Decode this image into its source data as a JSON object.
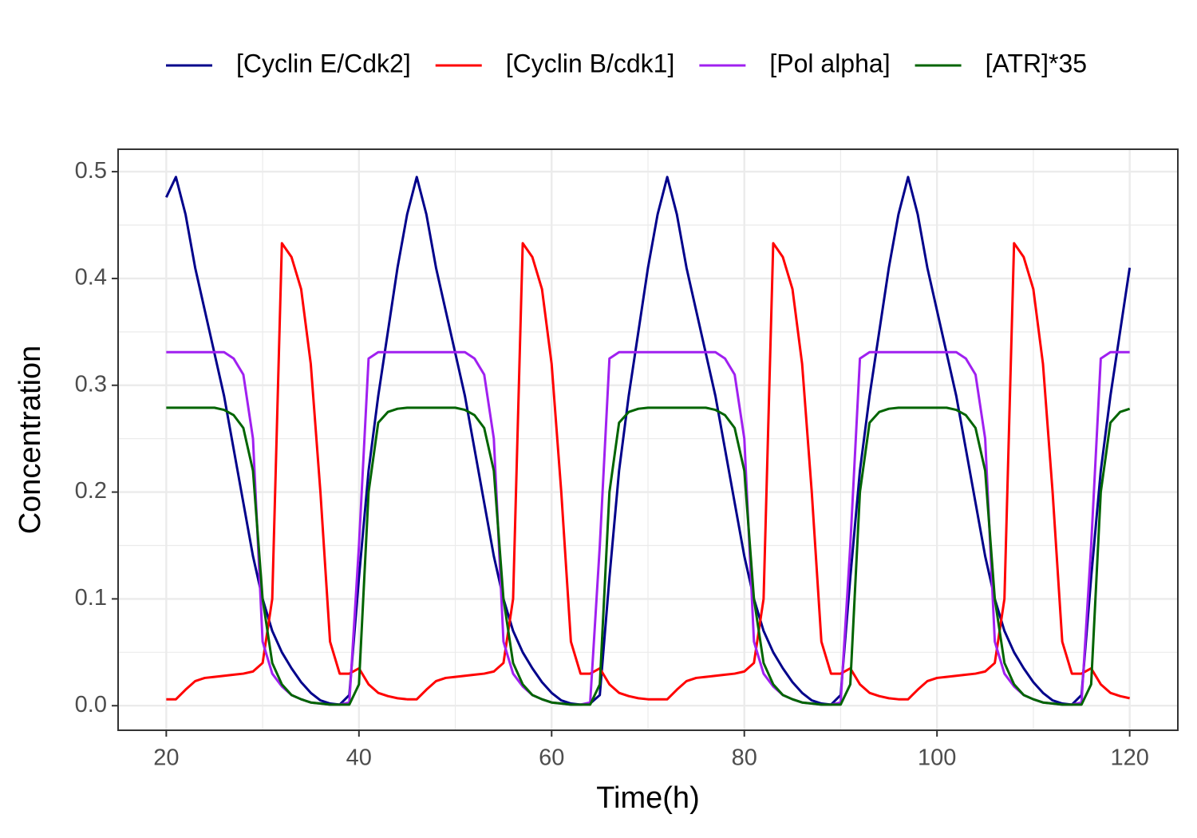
{
  "chart_data": {
    "type": "line",
    "x_label": "Time(h)",
    "y_label": "Concentration",
    "legend_position": "top",
    "grid": true,
    "xlim": [
      15,
      125
    ],
    "ylim": [
      -0.023,
      0.521
    ],
    "xticks": [
      20,
      40,
      60,
      80,
      100,
      120
    ],
    "yticks": [
      {
        "value": 0,
        "label": "0.0"
      },
      0.1,
      0.2,
      0.3,
      0.4,
      0.5
    ],
    "x": [
      20,
      21,
      22,
      23,
      24,
      25,
      26,
      27,
      28,
      29,
      30,
      31,
      32,
      33,
      34,
      35,
      36,
      37,
      38,
      39,
      40,
      41,
      42,
      43,
      44,
      45,
      46,
      47,
      48,
      49,
      50,
      51,
      52,
      53,
      54,
      55,
      56,
      57,
      58,
      59,
      60,
      61,
      62,
      63,
      64,
      65,
      66,
      67,
      68,
      69,
      70,
      71,
      72,
      73,
      74,
      75,
      76,
      77,
      78,
      79,
      80,
      81,
      82,
      83,
      84,
      85,
      86,
      87,
      88,
      89,
      90,
      91,
      92,
      93,
      94,
      95,
      96,
      97,
      98,
      99,
      100,
      101,
      102,
      103,
      104,
      105,
      106,
      107,
      108,
      109,
      110,
      111,
      112,
      113,
      114,
      115,
      116,
      117,
      118,
      119,
      120
    ],
    "series": [
      {
        "name": "[Cyclin E/Cdk2]",
        "color": "#00008b",
        "values": [
          0.476,
          0.495,
          0.46,
          0.41,
          0.37,
          0.33,
          0.29,
          0.24,
          0.19,
          0.14,
          0.1,
          0.07,
          0.05,
          0.035,
          0.022,
          0.012,
          0.005,
          0.002,
          0.001,
          0.01,
          0.12,
          0.22,
          0.29,
          0.35,
          0.41,
          0.46,
          0.495,
          0.46,
          0.41,
          0.37,
          0.33,
          0.29,
          0.24,
          0.19,
          0.14,
          0.1,
          0.07,
          0.05,
          0.035,
          0.022,
          0.012,
          0.005,
          0.002,
          0.001,
          0.002,
          0.01,
          0.12,
          0.22,
          0.29,
          0.35,
          0.41,
          0.46,
          0.495,
          0.46,
          0.41,
          0.37,
          0.33,
          0.29,
          0.24,
          0.19,
          0.14,
          0.1,
          0.07,
          0.05,
          0.035,
          0.022,
          0.012,
          0.005,
          0.002,
          0.001,
          0.01,
          0.12,
          0.22,
          0.29,
          0.35,
          0.41,
          0.46,
          0.495,
          0.46,
          0.41,
          0.37,
          0.33,
          0.29,
          0.24,
          0.19,
          0.14,
          0.1,
          0.07,
          0.05,
          0.035,
          0.022,
          0.012,
          0.005,
          0.002,
          0.001,
          0.01,
          0.12,
          0.22,
          0.29,
          0.35,
          0.41
        ]
      },
      {
        "name": "[Cyclin B/cdk1]",
        "color": "#ff0000",
        "values": [
          0.006,
          0.006,
          0.015,
          0.023,
          0.026,
          0.027,
          0.028,
          0.029,
          0.03,
          0.032,
          0.04,
          0.1,
          0.433,
          0.42,
          0.39,
          0.32,
          0.2,
          0.06,
          0.03,
          0.03,
          0.035,
          0.02,
          0.012,
          0.009,
          0.007,
          0.006,
          0.006,
          0.015,
          0.023,
          0.026,
          0.027,
          0.028,
          0.029,
          0.03,
          0.032,
          0.04,
          0.1,
          0.433,
          0.42,
          0.39,
          0.32,
          0.2,
          0.06,
          0.03,
          0.03,
          0.035,
          0.02,
          0.012,
          0.009,
          0.007,
          0.006,
          0.006,
          0.006,
          0.015,
          0.023,
          0.026,
          0.027,
          0.028,
          0.029,
          0.03,
          0.032,
          0.04,
          0.1,
          0.433,
          0.42,
          0.39,
          0.32,
          0.2,
          0.06,
          0.03,
          0.03,
          0.035,
          0.02,
          0.012,
          0.009,
          0.007,
          0.006,
          0.006,
          0.015,
          0.023,
          0.026,
          0.027,
          0.028,
          0.029,
          0.03,
          0.032,
          0.04,
          0.1,
          0.433,
          0.42,
          0.39,
          0.32,
          0.2,
          0.06,
          0.03,
          0.03,
          0.035,
          0.02,
          0.012,
          0.009,
          0.007
        ]
      },
      {
        "name": "[Pol alpha]",
        "color": "#a020f0",
        "values": [
          0.331,
          0.331,
          0.331,
          0.331,
          0.331,
          0.331,
          0.331,
          0.325,
          0.31,
          0.25,
          0.06,
          0.03,
          0.018,
          0.01,
          0.006,
          0.003,
          0.002,
          0.001,
          0.001,
          0.003,
          0.15,
          0.325,
          0.331,
          0.331,
          0.331,
          0.331,
          0.331,
          0.331,
          0.331,
          0.331,
          0.331,
          0.331,
          0.325,
          0.31,
          0.25,
          0.06,
          0.03,
          0.018,
          0.01,
          0.006,
          0.003,
          0.002,
          0.001,
          0.001,
          0.003,
          0.15,
          0.325,
          0.331,
          0.331,
          0.331,
          0.331,
          0.331,
          0.331,
          0.331,
          0.331,
          0.331,
          0.331,
          0.331,
          0.325,
          0.31,
          0.25,
          0.06,
          0.03,
          0.018,
          0.01,
          0.006,
          0.003,
          0.002,
          0.001,
          0.001,
          0.003,
          0.15,
          0.325,
          0.331,
          0.331,
          0.331,
          0.331,
          0.331,
          0.331,
          0.331,
          0.331,
          0.331,
          0.331,
          0.325,
          0.31,
          0.25,
          0.06,
          0.03,
          0.018,
          0.01,
          0.006,
          0.003,
          0.002,
          0.001,
          0.001,
          0.003,
          0.15,
          0.325,
          0.331,
          0.331,
          0.331
        ]
      },
      {
        "name": "[ATR]*35",
        "color": "#006400",
        "values": [
          0.279,
          0.279,
          0.279,
          0.279,
          0.279,
          0.279,
          0.277,
          0.272,
          0.26,
          0.22,
          0.1,
          0.04,
          0.02,
          0.01,
          0.006,
          0.003,
          0.002,
          0.001,
          0.001,
          0.001,
          0.02,
          0.2,
          0.265,
          0.275,
          0.278,
          0.279,
          0.279,
          0.279,
          0.279,
          0.279,
          0.279,
          0.277,
          0.272,
          0.26,
          0.22,
          0.1,
          0.04,
          0.02,
          0.01,
          0.006,
          0.003,
          0.002,
          0.001,
          0.001,
          0.001,
          0.02,
          0.2,
          0.265,
          0.275,
          0.278,
          0.279,
          0.279,
          0.279,
          0.279,
          0.279,
          0.279,
          0.279,
          0.277,
          0.272,
          0.26,
          0.22,
          0.1,
          0.04,
          0.02,
          0.01,
          0.006,
          0.003,
          0.002,
          0.001,
          0.001,
          0.001,
          0.02,
          0.2,
          0.265,
          0.275,
          0.278,
          0.279,
          0.279,
          0.279,
          0.279,
          0.279,
          0.279,
          0.277,
          0.272,
          0.26,
          0.22,
          0.1,
          0.04,
          0.02,
          0.01,
          0.006,
          0.003,
          0.002,
          0.001,
          0.001,
          0.001,
          0.02,
          0.2,
          0.265,
          0.275,
          0.278
        ]
      }
    ]
  }
}
